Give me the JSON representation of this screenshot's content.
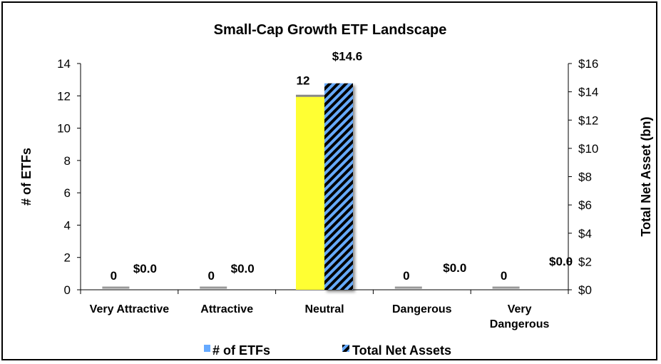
{
  "chart_data": {
    "type": "bar",
    "title": "Small-Cap Growth ETF Landscape",
    "categories": [
      "Very Attractive",
      "Attractive",
      "Neutral",
      "Dangerous",
      "Very Dangerous"
    ],
    "category_lines": [
      [
        "Very Attractive"
      ],
      [
        "Attractive"
      ],
      [
        "Neutral"
      ],
      [
        "Dangerous"
      ],
      [
        "Very",
        "Dangerous"
      ]
    ],
    "ylabel": "# of ETFs",
    "y2label": "Total Net Asset (bn)",
    "ylim": [
      0,
      14
    ],
    "y2lim": [
      0,
      16
    ],
    "yticks": [
      0,
      2,
      4,
      6,
      8,
      10,
      12,
      14
    ],
    "y2ticks": [
      "$0",
      "$2",
      "$4",
      "$6",
      "$8",
      "$10",
      "$12",
      "$14",
      "$16"
    ],
    "y2tick_values": [
      0,
      2,
      4,
      6,
      8,
      10,
      12,
      14,
      16
    ],
    "series": [
      {
        "name": "# of ETFs",
        "axis": "left",
        "values": [
          0,
          0,
          12,
          0,
          0
        ],
        "labels": [
          "0",
          "0",
          "12",
          "0",
          "0"
        ],
        "color": "#ffff33",
        "legend_color": "#66aaff"
      },
      {
        "name": "Total Net Assets",
        "axis": "right",
        "values": [
          0.0,
          0.0,
          14.6,
          0.0,
          0.0
        ],
        "labels": [
          "$0.0",
          "$0.0",
          "$14.6",
          "$0.0",
          "$0.0"
        ],
        "color": "#66aaff",
        "stripe_color": "#000000"
      }
    ],
    "legend": "bottom",
    "grid": false
  }
}
